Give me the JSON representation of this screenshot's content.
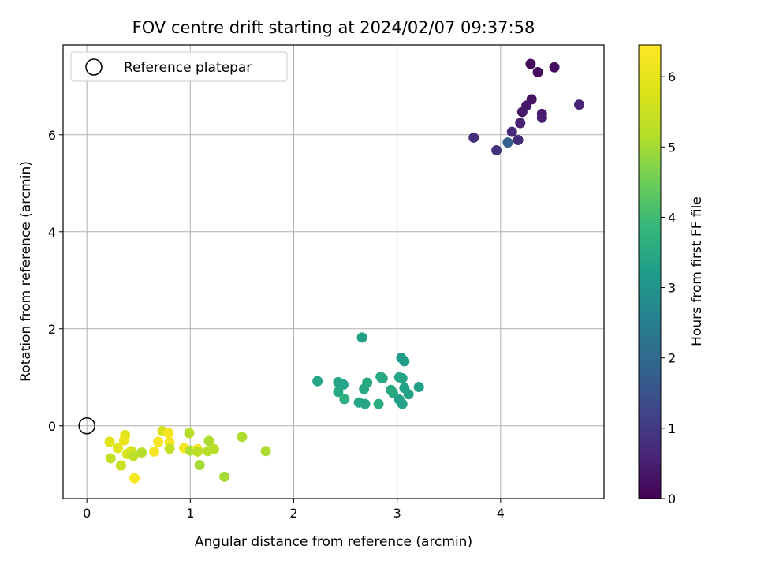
{
  "chart_data": {
    "type": "scatter",
    "title": "FOV centre drift starting at 2024/02/07 09:37:58",
    "xlabel": "Angular distance from reference (arcmin)",
    "ylabel": "Rotation from reference (arcmin)",
    "xlim": [
      -0.23,
      5.0
    ],
    "ylim": [
      -1.5,
      7.85
    ],
    "xticks": [
      0,
      1,
      2,
      3,
      4
    ],
    "yticks": [
      0,
      2,
      4,
      6
    ],
    "grid": true,
    "legend": {
      "placement": "top-left",
      "entries": [
        "Reference platepar"
      ]
    },
    "reference_point": {
      "x": 0,
      "y": 0,
      "label": "Reference platepar"
    },
    "colorbar": {
      "label": "Hours from first FF file",
      "colormap": "viridis",
      "range": [
        0,
        6.45
      ],
      "ticks": [
        0,
        1,
        2,
        3,
        4,
        5,
        6
      ]
    },
    "series": [
      {
        "points": [
          {
            "x": 4.29,
            "y": 7.46,
            "c": 0.1
          },
          {
            "x": 4.36,
            "y": 7.29,
            "c": 0.15
          },
          {
            "x": 4.52,
            "y": 7.39,
            "c": 0.2
          },
          {
            "x": 4.3,
            "y": 6.73,
            "c": 0.3
          },
          {
            "x": 4.25,
            "y": 6.6,
            "c": 0.35
          },
          {
            "x": 4.21,
            "y": 6.47,
            "c": 0.4
          },
          {
            "x": 4.4,
            "y": 6.43,
            "c": 0.45
          },
          {
            "x": 4.4,
            "y": 6.35,
            "c": 0.5
          },
          {
            "x": 4.19,
            "y": 6.24,
            "c": 0.55
          },
          {
            "x": 4.76,
            "y": 6.62,
            "c": 0.6
          },
          {
            "x": 4.11,
            "y": 6.06,
            "c": 0.7
          },
          {
            "x": 4.17,
            "y": 5.89,
            "c": 0.75
          },
          {
            "x": 3.74,
            "y": 5.94,
            "c": 0.8
          },
          {
            "x": 3.96,
            "y": 5.68,
            "c": 0.85
          },
          {
            "x": 4.07,
            "y": 5.84,
            "c": 1.8
          },
          {
            "x": 2.66,
            "y": 1.82,
            "c": 3.3
          },
          {
            "x": 3.04,
            "y": 1.4,
            "c": 3.2
          },
          {
            "x": 3.07,
            "y": 1.33,
            "c": 3.2
          },
          {
            "x": 2.23,
            "y": 0.92,
            "c": 3.4
          },
          {
            "x": 2.43,
            "y": 0.9,
            "c": 3.4
          },
          {
            "x": 2.48,
            "y": 0.85,
            "c": 3.4
          },
          {
            "x": 2.43,
            "y": 0.7,
            "c": 3.5
          },
          {
            "x": 2.49,
            "y": 0.55,
            "c": 3.7
          },
          {
            "x": 2.71,
            "y": 0.89,
            "c": 3.5
          },
          {
            "x": 2.68,
            "y": 0.76,
            "c": 3.5
          },
          {
            "x": 2.63,
            "y": 0.48,
            "c": 3.4
          },
          {
            "x": 2.69,
            "y": 0.45,
            "c": 3.4
          },
          {
            "x": 2.82,
            "y": 0.45,
            "c": 3.6
          },
          {
            "x": 2.84,
            "y": 1.01,
            "c": 3.5
          },
          {
            "x": 2.86,
            "y": 0.98,
            "c": 3.5
          },
          {
            "x": 2.94,
            "y": 0.74,
            "c": 3.5
          },
          {
            "x": 2.96,
            "y": 0.68,
            "c": 3.5
          },
          {
            "x": 3.02,
            "y": 1.0,
            "c": 3.4
          },
          {
            "x": 3.05,
            "y": 0.98,
            "c": 3.4
          },
          {
            "x": 3.02,
            "y": 0.54,
            "c": 3.3
          },
          {
            "x": 3.05,
            "y": 0.45,
            "c": 3.3
          },
          {
            "x": 3.07,
            "y": 0.78,
            "c": 3.3
          },
          {
            "x": 3.11,
            "y": 0.65,
            "c": 3.3
          },
          {
            "x": 3.21,
            "y": 0.8,
            "c": 3.3
          },
          {
            "x": 0.22,
            "y": -0.33,
            "c": 5.9
          },
          {
            "x": 0.23,
            "y": -0.67,
            "c": 5.4
          },
          {
            "x": 0.3,
            "y": -0.46,
            "c": 5.9
          },
          {
            "x": 0.33,
            "y": -0.82,
            "c": 5.5
          },
          {
            "x": 0.37,
            "y": -0.19,
            "c": 5.9
          },
          {
            "x": 0.36,
            "y": -0.3,
            "c": 6.1
          },
          {
            "x": 0.39,
            "y": -0.58,
            "c": 5.7
          },
          {
            "x": 0.43,
            "y": -0.52,
            "c": 5.7
          },
          {
            "x": 0.45,
            "y": -0.62,
            "c": 5.3
          },
          {
            "x": 0.46,
            "y": -1.08,
            "c": 6.3
          },
          {
            "x": 0.53,
            "y": -0.55,
            "c": 5.2
          },
          {
            "x": 0.65,
            "y": -0.53,
            "c": 6.3
          },
          {
            "x": 0.69,
            "y": -0.33,
            "c": 6.3
          },
          {
            "x": 0.73,
            "y": -0.11,
            "c": 5.7
          },
          {
            "x": 0.79,
            "y": -0.15,
            "c": 6.3
          },
          {
            "x": 0.8,
            "y": -0.34,
            "c": 6.3
          },
          {
            "x": 0.8,
            "y": -0.47,
            "c": 5.4
          },
          {
            "x": 0.94,
            "y": -0.46,
            "c": 6.3
          },
          {
            "x": 0.99,
            "y": -0.15,
            "c": 5.2
          },
          {
            "x": 1.0,
            "y": -0.51,
            "c": 5.1
          },
          {
            "x": 1.07,
            "y": -0.48,
            "c": 6.3
          },
          {
            "x": 1.07,
            "y": -0.53,
            "c": 5.3
          },
          {
            "x": 1.09,
            "y": -0.81,
            "c": 5.0
          },
          {
            "x": 1.17,
            "y": -0.52,
            "c": 5.2
          },
          {
            "x": 1.18,
            "y": -0.31,
            "c": 5.1
          },
          {
            "x": 1.23,
            "y": -0.48,
            "c": 5.2
          },
          {
            "x": 1.33,
            "y": -1.05,
            "c": 5.0
          },
          {
            "x": 1.5,
            "y": -0.23,
            "c": 5.1
          },
          {
            "x": 1.73,
            "y": -0.52,
            "c": 5.1
          }
        ]
      }
    ]
  }
}
